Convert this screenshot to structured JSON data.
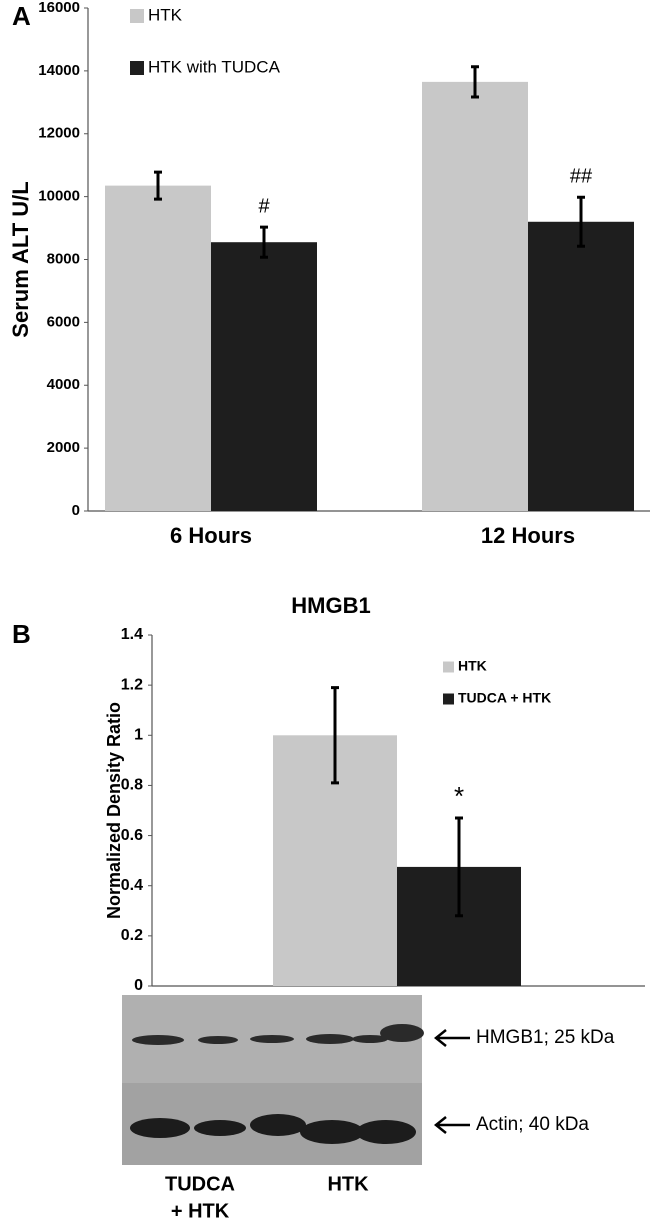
{
  "chart_data": [
    {
      "type": "bar",
      "label": "A",
      "ylabel": "Serum ALT U/L",
      "categories": [
        "6 Hours",
        "12 Hours"
      ],
      "series": [
        {
          "name": "HTK",
          "color": "#c8c8c8",
          "values": [
            10350,
            13650
          ],
          "errors": [
            430,
            480
          ]
        },
        {
          "name": "HTK with TUDCA",
          "color": "#1e1e1e",
          "values": [
            8550,
            9200
          ],
          "errors": [
            480,
            780
          ],
          "annotations": [
            "#",
            "##"
          ]
        }
      ],
      "ylim": [
        0,
        16000
      ],
      "yticks": [
        0,
        2000,
        4000,
        6000,
        8000,
        10000,
        12000,
        14000,
        16000
      ],
      "legend": "upper left"
    },
    {
      "type": "bar",
      "label": "B",
      "title": "HMGB1",
      "ylabel": "Normalized Density Ratio",
      "categories": [
        null
      ],
      "series": [
        {
          "name": "HTK",
          "color": "#c8c8c8",
          "values": [
            1
          ],
          "errors": [
            0.19
          ]
        },
        {
          "name": "TUDCA + HTK",
          "color": "#1e1e1e",
          "values": [
            0.475
          ],
          "errors": [
            0.195
          ],
          "annotations": [
            "*"
          ]
        }
      ],
      "ylim": [
        0,
        1.4
      ],
      "yticks": [
        0,
        0.2,
        0.4,
        0.6,
        0.8,
        1,
        1.2,
        1.4
      ],
      "legend": "upper right"
    }
  ],
  "blot": {
    "bands": [
      "HMGB1; 25 kDa",
      "Actin; 40 kDa"
    ],
    "groups": [
      [
        "TUDCA",
        "+ HTK"
      ],
      [
        "HTK"
      ]
    ]
  }
}
